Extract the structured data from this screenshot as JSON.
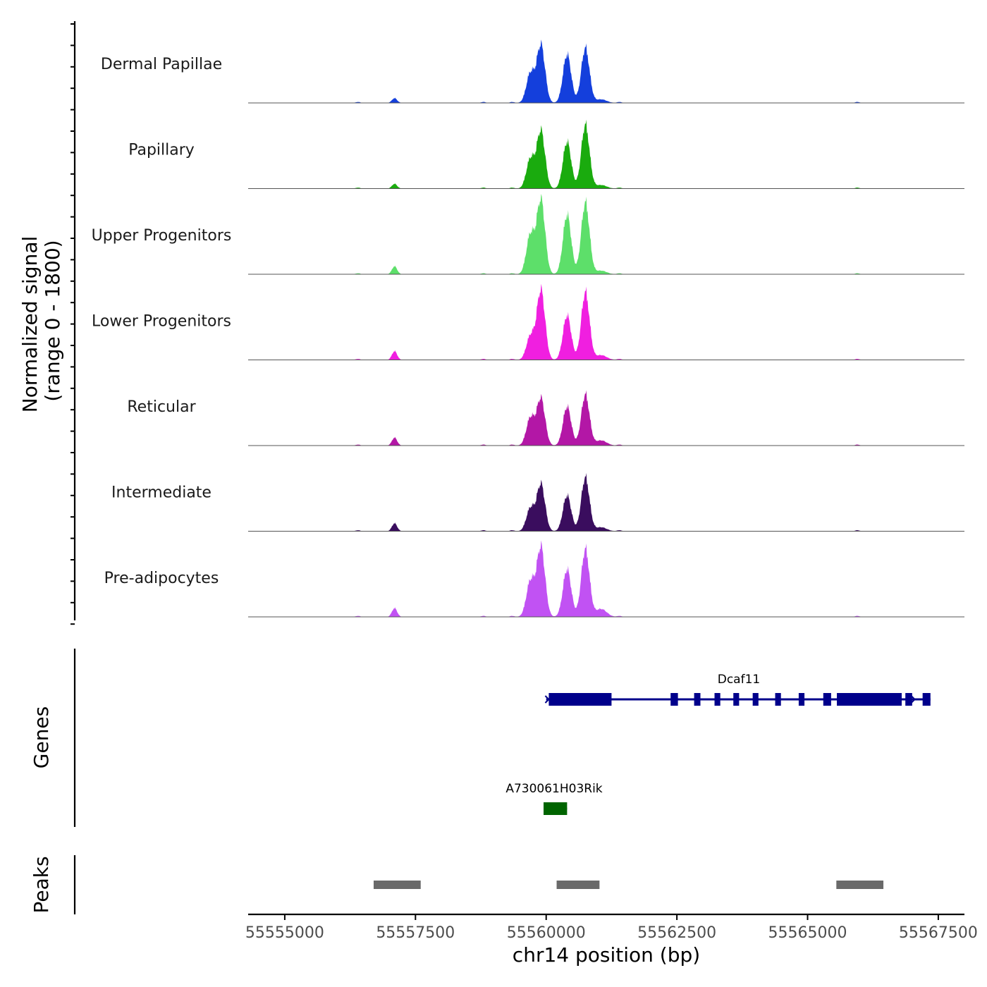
{
  "chart_data": {
    "type": "area",
    "title": "",
    "chromosome": "chr14",
    "xlabel": "chr14 position (bp)",
    "ylabel_line1": "Normalized signal",
    "ylabel_line2": "(range 0 - 1800)",
    "xlim": [
      55554300,
      55568000
    ],
    "ylim": [
      0,
      1800
    ],
    "x_ticks": [
      55555000,
      55557500,
      55560000,
      55562500,
      55565000,
      55567500
    ],
    "x_tick_labels": [
      "55555000",
      "55557500",
      "55560000",
      "55562500",
      "55565000",
      "55567500"
    ],
    "peak_shape_centers": [
      55557100,
      55559700,
      55559900,
      55560400,
      55560750,
      55561050
    ],
    "series": [
      {
        "name": "Dermal Papillae",
        "color": "#143fdc",
        "values": [
          120,
          750,
          1450,
          1220,
          1380,
          90
        ]
      },
      {
        "name": "Papillary",
        "color": "#1aab0e",
        "values": [
          120,
          750,
          1450,
          1180,
          1600,
          90
        ]
      },
      {
        "name": "Upper Progenitors",
        "color": "#5ddf6a",
        "values": [
          200,
          1000,
          1870,
          1500,
          1800,
          90
        ]
      },
      {
        "name": "Lower Progenitors",
        "color": "#f01fe0",
        "values": [
          220,
          600,
          1750,
          1120,
          1700,
          120
        ]
      },
      {
        "name": "Reticular",
        "color": "#b317a6",
        "values": [
          200,
          700,
          1180,
          980,
          1280,
          130
        ]
      },
      {
        "name": "Intermediate",
        "color": "#3a0d5e",
        "values": [
          200,
          580,
          1180,
          900,
          1350,
          100
        ]
      },
      {
        "name": "Pre-adipocytes",
        "color": "#c152f3",
        "values": [
          220,
          900,
          1750,
          1200,
          1700,
          200
        ]
      }
    ],
    "minor_bumps": [
      55556400,
      55558800,
      55559350,
      55561400,
      55565950
    ],
    "genes_title": "Genes",
    "genes": [
      {
        "name": "Dcaf11",
        "start": 55560000,
        "end": 55567350,
        "color": "#00008b",
        "strand": "+",
        "exons": [
          [
            55560050,
            55561250
          ],
          [
            55562380,
            55562520
          ],
          [
            55562830,
            55562950
          ],
          [
            55563220,
            55563330
          ],
          [
            55563580,
            55563690
          ],
          [
            55563950,
            55564060
          ],
          [
            55564380,
            55564490
          ],
          [
            55564830,
            55564940
          ],
          [
            55565300,
            55565450
          ],
          [
            55565560,
            55566800
          ],
          [
            55566870,
            55567000
          ],
          [
            55567200,
            55567350
          ]
        ]
      },
      {
        "name": "A730061H03Rik",
        "start": 55559950,
        "end": 55560400,
        "color": "#006400",
        "strand": "+",
        "exons": [
          [
            55559950,
            55560400
          ]
        ]
      }
    ],
    "peaks_title": "Peaks",
    "peaks_color": "#696969",
    "peaks": [
      [
        55556700,
        55557600
      ],
      [
        55560200,
        55561020
      ],
      [
        55565550,
        55566450
      ]
    ]
  }
}
